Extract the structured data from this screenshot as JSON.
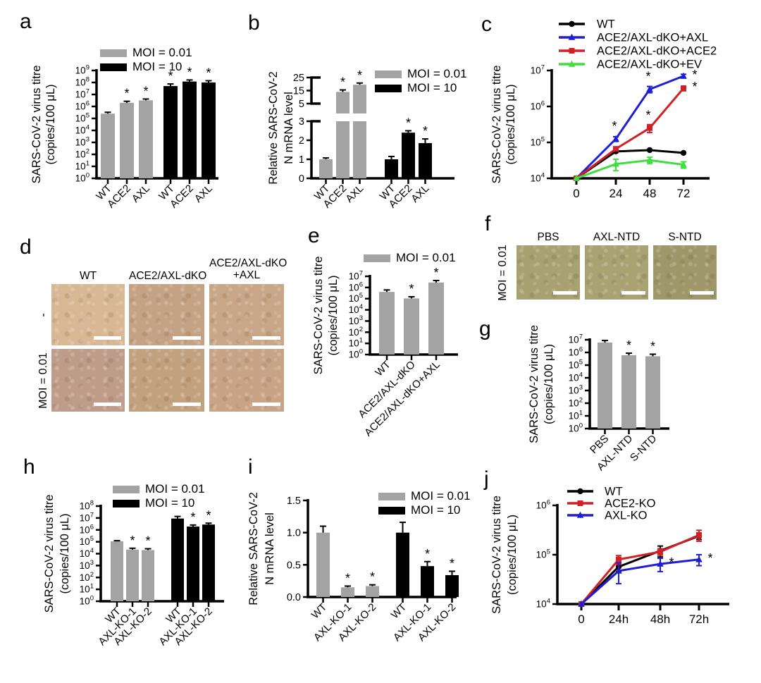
{
  "panels": {
    "a": {
      "label": "a"
    },
    "b": {
      "label": "b"
    },
    "c": {
      "label": "c"
    },
    "d": {
      "label": "d",
      "columns": [
        [
          "WT"
        ],
        [
          "ACE2/AXL-dKO"
        ],
        [
          "ACE2/AXL-dKO",
          "+AXL"
        ]
      ],
      "rows": [
        {
          "label": "-",
          "cells": [
            "#d8b795",
            "#c6a284",
            "#c8a687"
          ]
        },
        {
          "label": "MOI = 0.01",
          "cells": [
            "#bf9c8a",
            "#c2a17e",
            "#c9a385"
          ]
        }
      ]
    },
    "e": {
      "label": "e"
    },
    "f": {
      "label": "f",
      "columns": [
        [
          "PBS"
        ],
        [
          "AXL-NTD"
        ],
        [
          "S-NTD"
        ]
      ],
      "rows": [
        {
          "label": "MOI = 0.01",
          "cells": [
            "#a8a171",
            "#a9a273",
            "#9d9769"
          ]
        }
      ]
    },
    "g": {
      "label": "g"
    },
    "h": {
      "label": "h"
    },
    "i": {
      "label": "i"
    },
    "j": {
      "label": "j"
    }
  },
  "colors": {
    "gray": "#a3a3a3",
    "black": "#000000",
    "blue": "#1e1ed6",
    "red": "#d22027",
    "green": "#3ede3e"
  },
  "chart_data": [
    {
      "panel": "a",
      "type": "bar",
      "scale": "log",
      "ylabel": [
        "SARS-CoV-2 virus titre",
        "(copies/100 μL)"
      ],
      "ylim_log": [
        0,
        9
      ],
      "legend": [
        {
          "label": "MOI = 0.01",
          "color": "#a3a3a3"
        },
        {
          "label": "MOI = 10",
          "color": "#000000"
        }
      ],
      "groups": [
        {
          "name": "MOI = 0.01",
          "color": "#a3a3a3",
          "categories": [
            "WT",
            "ACE2",
            "AXL"
          ],
          "values": [
            250000.0,
            2000000.0,
            3200000.0
          ],
          "errors_frac": [
            0.3,
            0.35,
            0.3
          ],
          "stars": [
            false,
            true,
            true
          ]
        },
        {
          "name": "MOI = 10",
          "color": "#000000",
          "categories": [
            "WT",
            "ACE2",
            "AXL"
          ],
          "values": [
            50000000.0,
            120000000.0,
            100000000.0
          ],
          "errors_frac": [
            0.5,
            0.35,
            0.4
          ],
          "stars": [
            true,
            true,
            true
          ]
        }
      ]
    },
    {
      "panel": "b",
      "type": "bar-broken",
      "ylabel": [
        "Relative SARS-CoV-2",
        "N mRNA level"
      ],
      "axis_lower": {
        "range": [
          0,
          3
        ],
        "ticks": [
          0,
          1,
          2,
          3
        ]
      },
      "axis_upper": {
        "range": [
          5,
          25
        ],
        "ticks": [
          5,
          15,
          25
        ]
      },
      "legend": [
        {
          "label": "MOI = 0.01",
          "color": "#a3a3a3"
        },
        {
          "label": "MOI = 10",
          "color": "#000000"
        }
      ],
      "groups": [
        {
          "name": "MOI = 0.01",
          "color": "#a3a3a3",
          "categories": [
            "WT",
            "ACE2",
            "AXL"
          ],
          "values": [
            1.0,
            14,
            19.5
          ],
          "errors_abs": [
            0.07,
            1.5,
            1.3
          ],
          "stars": [
            false,
            true,
            true
          ]
        },
        {
          "name": "MOI = 10",
          "color": "#000000",
          "categories": [
            "WT",
            "ACE2",
            "AXL"
          ],
          "values": [
            1.0,
            2.4,
            1.85
          ],
          "errors_abs": [
            0.15,
            0.1,
            0.22
          ],
          "stars": [
            false,
            true,
            true
          ]
        }
      ]
    },
    {
      "panel": "c",
      "type": "line",
      "scale": "log",
      "ylabel": [
        "SARS-CoV-2 virus titre",
        "(copies/100 μL)"
      ],
      "ylim_log": [
        4,
        7
      ],
      "x_labels": [
        "0",
        "24",
        "48",
        "72"
      ],
      "series": [
        {
          "name": "WT",
          "color": "#000000",
          "marker": "circle",
          "values": [
            10000.0,
            56000.0,
            61000.0,
            51000.0
          ],
          "errors_frac": [
            0,
            0,
            0,
            0
          ],
          "stars": [
            0,
            0,
            0,
            0
          ]
        },
        {
          "name": "ACE2/AXL-dKO+AXL",
          "color": "#1e1ed6",
          "marker": "triangle",
          "values": [
            10000.0,
            125000.0,
            3000000.0,
            7000000.0
          ],
          "errors_frac": [
            0,
            0.15,
            0.2,
            0.12
          ],
          "stars": [
            0,
            1,
            1,
            2
          ]
        },
        {
          "name": "ACE2/AXL-dKO+ACE2",
          "color": "#d22027",
          "marker": "square",
          "values": [
            10000.0,
            66000.0,
            250000.0,
            3200000.0
          ],
          "errors_frac": [
            0,
            0,
            0.25,
            0.15
          ],
          "stars": [
            0,
            0,
            1,
            2
          ]
        },
        {
          "name": "ACE2/AXL-dKO+EV",
          "color": "#3ede3e",
          "marker": "triangle",
          "values": [
            10000.0,
            25000.0,
            32000.0,
            24000.0
          ],
          "errors_frac": [
            0,
            0.35,
            0.2,
            0.2
          ],
          "stars": [
            0,
            0,
            0,
            0
          ]
        }
      ]
    },
    {
      "panel": "e",
      "type": "bar",
      "scale": "log",
      "ylabel": [
        "SARS-CoV-2 virus titre",
        "(copies/100 μL)"
      ],
      "ylim_log": [
        0,
        7
      ],
      "legend": [
        {
          "label": "MOI = 0.01",
          "color": "#a3a3a3"
        }
      ],
      "groups": [
        {
          "name": "MOI = 0.01",
          "color": "#a3a3a3",
          "categories": [
            "WT",
            "ACE2/AXL-dKO",
            "ACE2/AXL-dKO+AXL"
          ],
          "values": [
            400000.0,
            105000.0,
            2800000.0
          ],
          "errors_frac": [
            0.5,
            0.4,
            0.5
          ],
          "stars": [
            false,
            true,
            true
          ]
        }
      ]
    },
    {
      "panel": "g",
      "type": "bar",
      "scale": "log",
      "ylabel": [
        "SARS-CoV-2 virus titre",
        "(copies/100 μL)"
      ],
      "ylim_log": [
        0,
        7
      ],
      "groups": [
        {
          "name": "",
          "color": "#a3a3a3",
          "categories": [
            "PBS",
            "AXL-NTD",
            "S-NTD"
          ],
          "values": [
            6000000.0,
            600000.0,
            500000.0
          ],
          "errors_frac": [
            0.45,
            0.45,
            0.45
          ],
          "stars": [
            false,
            true,
            true
          ]
        }
      ]
    },
    {
      "panel": "h",
      "type": "bar",
      "scale": "log",
      "ylabel": [
        "SARS-CoV-2 virus titre",
        "(copies/100 μL)"
      ],
      "ylim_log": [
        0,
        8
      ],
      "legend": [
        {
          "label": "MOI = 0.01",
          "color": "#a3a3a3"
        },
        {
          "label": "MOI = 10",
          "color": "#000000"
        }
      ],
      "groups": [
        {
          "name": "MOI = 0.01",
          "color": "#a3a3a3",
          "categories": [
            "WT",
            "AXL-KO-1",
            "AXL-KO-2"
          ],
          "values": [
            110000.0,
            22000.0,
            20000.0
          ],
          "errors_frac": [
            0.12,
            0.3,
            0.3
          ],
          "stars": [
            false,
            true,
            true
          ]
        },
        {
          "name": "MOI = 10",
          "color": "#000000",
          "categories": [
            "WT",
            "AXL-KO-1",
            "AXL-KO-2"
          ],
          "values": [
            9000000.0,
            1900000.0,
            2800000.0
          ],
          "errors_frac": [
            0.5,
            0.35,
            0.3
          ],
          "stars": [
            false,
            true,
            true
          ]
        }
      ]
    },
    {
      "panel": "i",
      "type": "bar",
      "scale": "linear",
      "ylabel": [
        "Relative SARS-CoV-2",
        "N mRNA level"
      ],
      "ylim": [
        0,
        1.5
      ],
      "yticks": [
        {
          "v": 0,
          "label": "0.0"
        },
        {
          "v": 0.5,
          "label": "0.5"
        },
        {
          "v": 1.0,
          "label": "1.0"
        },
        {
          "v": 1.5,
          "label": "1.5"
        }
      ],
      "legend": [
        {
          "label": "MOI = 0.01",
          "color": "#a3a3a3"
        },
        {
          "label": "MOI = 10",
          "color": "#000000"
        }
      ],
      "groups": [
        {
          "name": "MOI = 0.01",
          "color": "#a3a3a3",
          "categories": [
            "WT",
            "AXL-KO-1",
            "AXL-KO-2"
          ],
          "values": [
            1.0,
            0.15,
            0.17
          ],
          "errors_abs": [
            0.1,
            0.02,
            0.02
          ],
          "stars": [
            false,
            true,
            true
          ]
        },
        {
          "name": "MOI = 10",
          "color": "#000000",
          "categories": [
            "WT",
            "AXL-KO-1",
            "AXL-KO-2"
          ],
          "values": [
            1.0,
            0.48,
            0.34
          ],
          "errors_abs": [
            0.16,
            0.07,
            0.06
          ],
          "stars": [
            false,
            true,
            true
          ]
        }
      ]
    },
    {
      "panel": "j",
      "type": "line",
      "scale": "log",
      "ylabel": [
        "SARS-CoV-2 virus titre",
        "(copies/100 μL)"
      ],
      "ylim_log": [
        4,
        6
      ],
      "x_labels": [
        "0",
        "24h",
        "48h",
        "72h"
      ],
      "series": [
        {
          "name": "WT",
          "color": "#000000",
          "marker": "circle",
          "values": [
            10000.0,
            57000.0,
            120000.0,
            240000.0
          ],
          "errors_frac": [
            0,
            0.2,
            0.25,
            0.15
          ],
          "stars": [
            0,
            0,
            0,
            0
          ]
        },
        {
          "name": "ACE2-KO",
          "color": "#d22027",
          "marker": "square",
          "values": [
            10000.0,
            80000.0,
            115000.0,
            250000.0
          ],
          "errors_frac": [
            0,
            0.2,
            0.15,
            0.25
          ],
          "stars": [
            0,
            0,
            0,
            0
          ]
        },
        {
          "name": "AXL-KO",
          "color": "#1e1ed6",
          "marker": "triangle",
          "values": [
            10000.0,
            47000.0,
            65000.0,
            80000.0
          ],
          "errors_frac": [
            0,
            0.45,
            0.3,
            0.25
          ],
          "stars": [
            0,
            0,
            2,
            2
          ]
        }
      ]
    }
  ]
}
